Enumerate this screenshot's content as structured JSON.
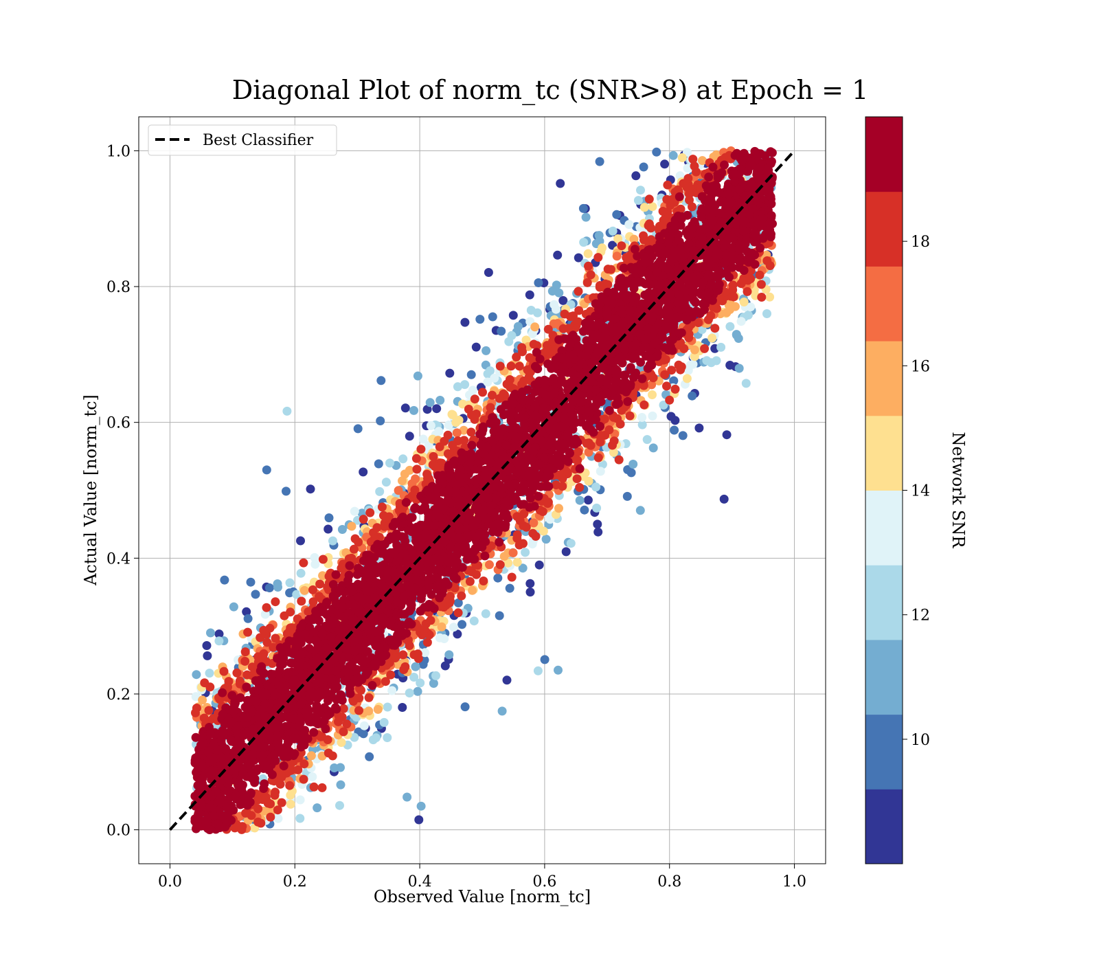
{
  "chart_data": {
    "type": "scatter",
    "title": "Diagonal Plot of norm_tc (SNR>8) at Epoch = 1",
    "xlabel": "Observed Value [norm_tc]",
    "ylabel": "Actual Value [norm_tc]",
    "xlim": [
      -0.05,
      1.05
    ],
    "ylim": [
      -0.05,
      1.05
    ],
    "xticks": [
      "0.0",
      "0.2",
      "0.4",
      "0.6",
      "0.8",
      "1.0"
    ],
    "yticks": [
      "0.0",
      "0.2",
      "0.4",
      "0.6",
      "0.8",
      "1.0"
    ],
    "grid": true,
    "legend": {
      "position": "upper-left",
      "entries": [
        {
          "label": "Best Classifier",
          "style": "black-dashed-line"
        }
      ]
    },
    "reference_line": {
      "name": "Best Classifier",
      "x": [
        0.0,
        1.0
      ],
      "y": [
        0.0,
        1.0
      ],
      "color": "#000000"
    },
    "colorbar": {
      "label": "Network SNR",
      "range": [
        8,
        20
      ],
      "ticks": [
        "10",
        "12",
        "14",
        "16",
        "18"
      ],
      "colors": [
        "#313695",
        "#4575b4",
        "#74add1",
        "#abd9e9",
        "#e0f3f8",
        "#fee090",
        "#fdae61",
        "#f46d43",
        "#d73027",
        "#a50026"
      ]
    },
    "point_distribution": {
      "x_range": [
        0.04,
        0.96
      ],
      "y_range": [
        0.0,
        1.0
      ],
      "description_values": {
        "dense_core_snr": 19.5,
        "outlier_snr_min": 8
      }
    }
  }
}
